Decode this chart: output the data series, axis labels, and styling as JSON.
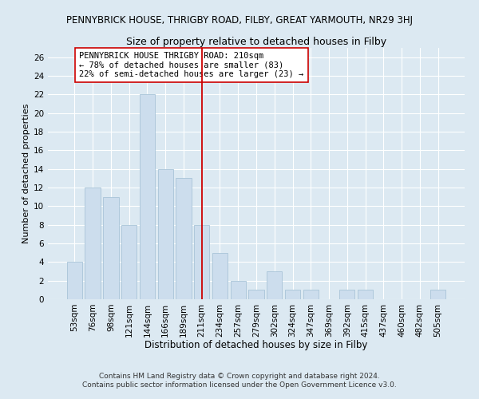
{
  "title": "PENNYBRICK HOUSE, THRIGBY ROAD, FILBY, GREAT YARMOUTH, NR29 3HJ",
  "subtitle": "Size of property relative to detached houses in Filby",
  "xlabel": "Distribution of detached houses by size in Filby",
  "ylabel": "Number of detached properties",
  "bar_labels": [
    "53sqm",
    "76sqm",
    "98sqm",
    "121sqm",
    "144sqm",
    "166sqm",
    "189sqm",
    "211sqm",
    "234sqm",
    "257sqm",
    "279sqm",
    "302sqm",
    "324sqm",
    "347sqm",
    "369sqm",
    "392sqm",
    "415sqm",
    "437sqm",
    "460sqm",
    "482sqm",
    "505sqm"
  ],
  "bar_values": [
    4,
    12,
    11,
    8,
    22,
    14,
    13,
    8,
    5,
    2,
    1,
    3,
    1,
    1,
    0,
    1,
    1,
    0,
    0,
    0,
    1
  ],
  "bar_color": "#ccdded",
  "bar_edge_color": "#a8c4d8",
  "vline_x": 7,
  "vline_color": "#cc0000",
  "annotation_text": "PENNYBRICK HOUSE THRIGBY ROAD: 210sqm\n← 78% of detached houses are smaller (83)\n22% of semi-detached houses are larger (23) →",
  "annotation_box_color": "#ffffff",
  "annotation_box_edge": "#cc0000",
  "ylim": [
    0,
    27
  ],
  "yticks": [
    0,
    2,
    4,
    6,
    8,
    10,
    12,
    14,
    16,
    18,
    20,
    22,
    24,
    26
  ],
  "footer1": "Contains HM Land Registry data © Crown copyright and database right 2024.",
  "footer2": "Contains public sector information licensed under the Open Government Licence v3.0.",
  "bg_color": "#dce9f2",
  "plot_bg_color": "#dce9f2",
  "title_fontsize": 8.5,
  "subtitle_fontsize": 9,
  "xlabel_fontsize": 8.5,
  "ylabel_fontsize": 8,
  "tick_fontsize": 7.5,
  "footer_fontsize": 6.5,
  "annotation_fontsize": 7.5
}
